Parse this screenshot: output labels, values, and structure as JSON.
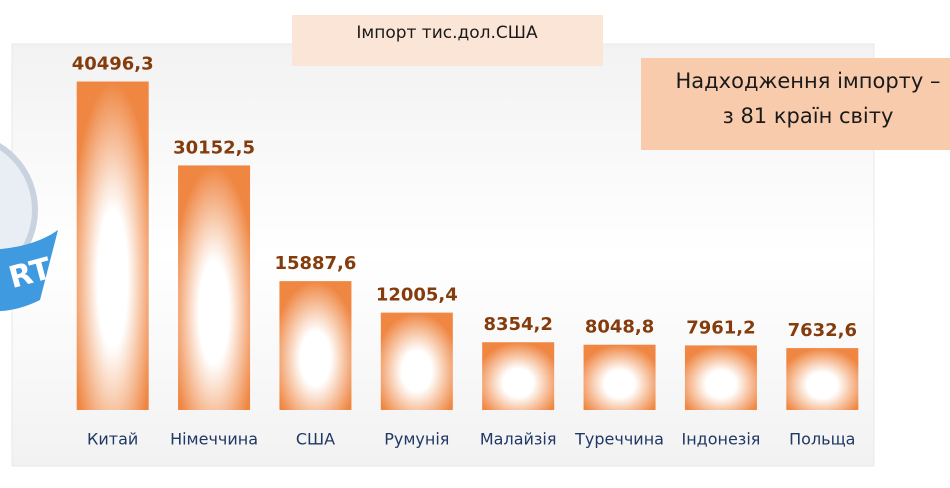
{
  "chart_data": {
    "type": "bar",
    "title": "Імпорт тис.дол.США",
    "annotation": [
      "Надходження імпорту –",
      "з 81 країн світу"
    ],
    "logo_text": "RT",
    "categories": [
      "Китай",
      "Німеччина",
      "США",
      "Румунія",
      "Малайзія",
      "Туреччина",
      "Індонезія",
      "Польща"
    ],
    "values": [
      40496.3,
      30152.5,
      15887.6,
      12005.4,
      8354.2,
      8048.8,
      7961.2,
      7632.6
    ],
    "value_labels": [
      "40496,3",
      "30152,5",
      "15887,6",
      "12005,4",
      "8354,2",
      "8048,8",
      "7961,2",
      "7632,6"
    ],
    "color": "#ef8642",
    "ylim": [
      0,
      45000
    ],
    "grid": false
  }
}
